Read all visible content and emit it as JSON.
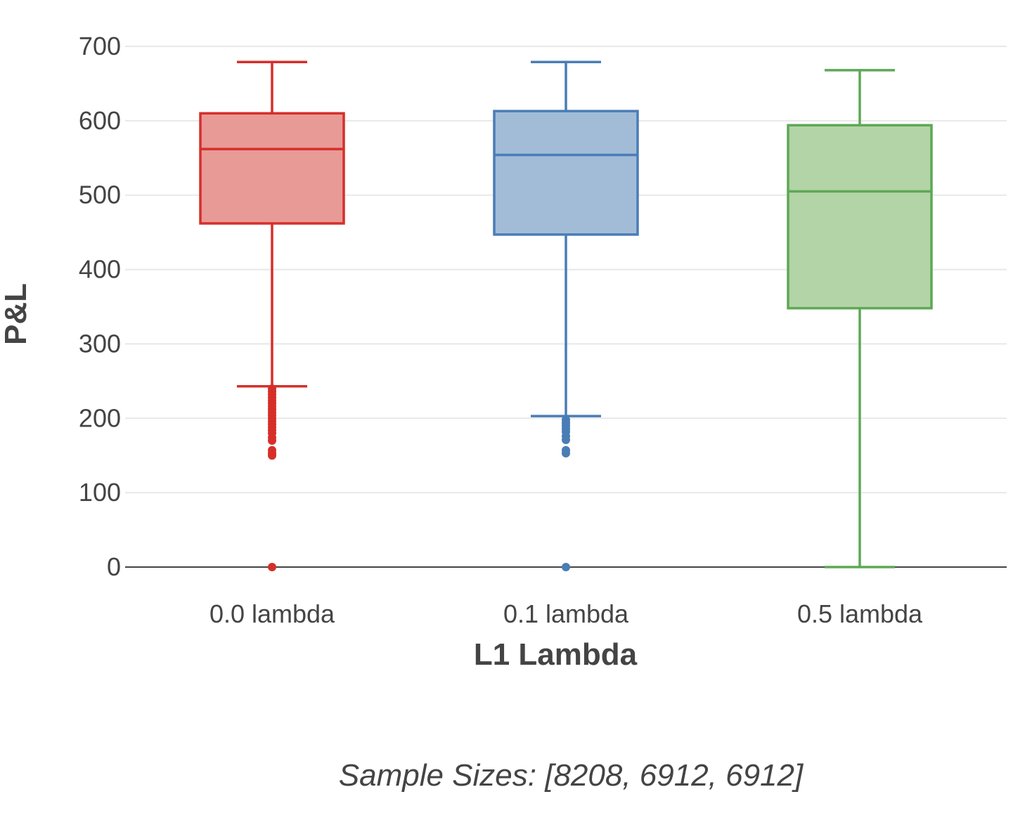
{
  "chart_data": {
    "type": "box",
    "title": "",
    "xlabel": "L1 Lambda",
    "ylabel": "P&L",
    "ylim": [
      0,
      700
    ],
    "yticks": [
      0,
      100,
      200,
      300,
      400,
      500,
      600,
      700
    ],
    "grid": true,
    "legend": "none",
    "categories": [
      "0.0 lambda",
      "0.1 lambda",
      "0.5 lambda"
    ],
    "series": [
      {
        "category": "0.0 lambda",
        "color": "#d62f2a",
        "fill": "#e89a96",
        "lower_whisker": 243,
        "q1": 462,
        "median": 562,
        "q3": 610,
        "upper_whisker": 679,
        "outliers": [
          240,
          236,
          232,
          228,
          224,
          220,
          216,
          212,
          208,
          204,
          200,
          196,
          192,
          188,
          184,
          180,
          174,
          170,
          157,
          153,
          150,
          0
        ]
      },
      {
        "category": "0.1 lambda",
        "color": "#4a7db5",
        "fill": "#a2bcd8",
        "lower_whisker": 203,
        "q1": 447,
        "median": 554,
        "q3": 613,
        "upper_whisker": 679,
        "outliers": [
          198,
          194,
          190,
          186,
          182,
          176,
          171,
          157,
          153,
          0
        ]
      },
      {
        "category": "0.5 lambda",
        "color": "#5ea856",
        "fill": "#b3d4a7",
        "lower_whisker": 0,
        "q1": 348,
        "median": 505,
        "q3": 594,
        "upper_whisker": 668,
        "outliers": []
      }
    ],
    "annotation": "Sample Sizes: [8208, 6912, 6912]"
  }
}
